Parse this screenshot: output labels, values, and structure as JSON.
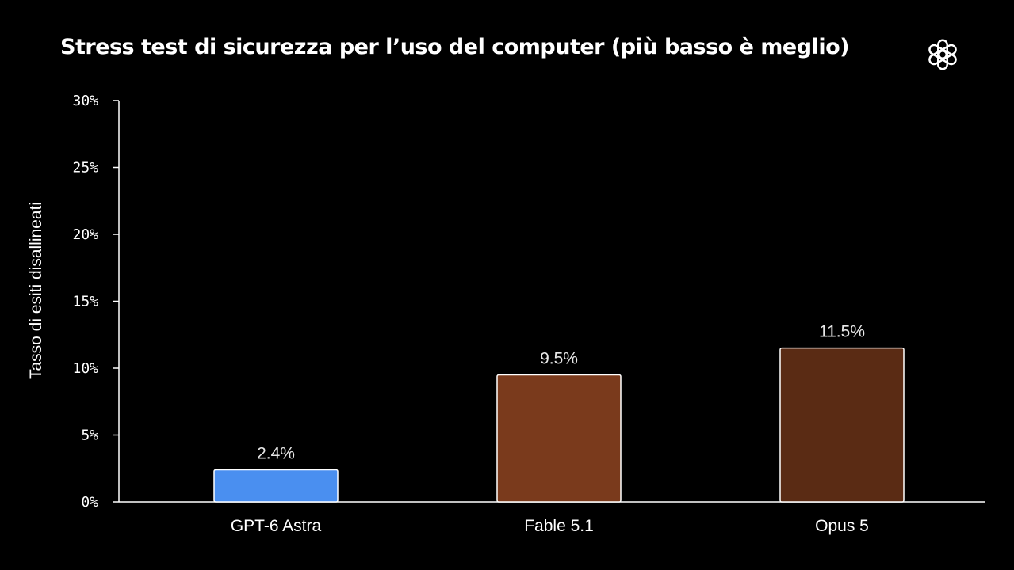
{
  "chart_data": {
    "type": "bar",
    "title": "Stress test di sicurezza per l’uso del computer (più basso è meglio)",
    "ylabel": "Tasso di esiti disallineati",
    "xlabel": "",
    "categories": [
      "GPT-6 Astra",
      "Fable 5.1",
      "Opus 5"
    ],
    "values": [
      2.4,
      9.5,
      11.5
    ],
    "value_labels": [
      "2.4%",
      "9.5%",
      "11.5%"
    ],
    "bar_colors": [
      "#4a8ff0",
      "#7a3a1c",
      "#5a2b14"
    ],
    "ylim": [
      0,
      30
    ],
    "yticks": [
      0,
      5,
      10,
      15,
      20,
      25,
      30
    ],
    "ytick_labels": [
      "0%",
      "5%",
      "10%",
      "15%",
      "20%",
      "25%",
      "30%"
    ],
    "grid": false,
    "legend": "none"
  },
  "brand": {
    "logo_icon": "openai-logo-icon"
  },
  "colors": {
    "background": "#000000",
    "text": "#ffffff",
    "axis": "#ffffff"
  }
}
